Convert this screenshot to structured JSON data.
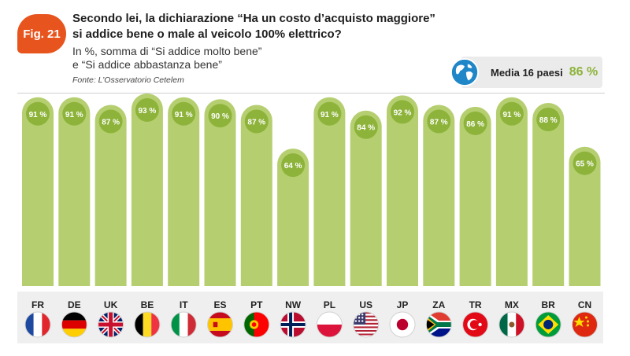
{
  "header": {
    "fig_label": "Fig. 21",
    "title": "Secondo lei, la dichiarazione “Ha un costo d’acquisto maggiore” si addice bene o male al veicolo 100% elettrico?",
    "subtitle_line1": "In %, somma di “Si addice molto bene”",
    "subtitle_line2": "e “Si addice abbastanza bene”",
    "source": "Fonte: L’Osservatorio Cetelem"
  },
  "average": {
    "label": "Media 16 paesi",
    "value": "86 %",
    "icon": "globe-icon"
  },
  "colors": {
    "bar": "#b5cf70",
    "bubble": "#8db33a",
    "accent": "#e8541e",
    "strip": "#efefef"
  },
  "chart_data": {
    "type": "bar",
    "categories": [
      "FR",
      "DE",
      "UK",
      "BE",
      "IT",
      "ES",
      "PT",
      "NW",
      "PL",
      "US",
      "JP",
      "ZA",
      "TR",
      "MX",
      "BR",
      "CN"
    ],
    "values": [
      91,
      91,
      87,
      93,
      91,
      90,
      87,
      64,
      91,
      84,
      92,
      87,
      86,
      91,
      88,
      65
    ],
    "data_labels": [
      "91 %",
      "91 %",
      "87 %",
      "93 %",
      "91 %",
      "90 %",
      "87 %",
      "64 %",
      "91 %",
      "84 %",
      "92 %",
      "87 %",
      "86 %",
      "91 %",
      "88 %",
      "65 %"
    ],
    "flag_icons": [
      "flag-fr-icon",
      "flag-de-icon",
      "flag-uk-icon",
      "flag-be-icon",
      "flag-it-icon",
      "flag-es-icon",
      "flag-pt-icon",
      "flag-no-icon",
      "flag-pl-icon",
      "flag-us-icon",
      "flag-jp-icon",
      "flag-za-icon",
      "flag-tr-icon",
      "flag-mx-icon",
      "flag-br-icon",
      "flag-cn-icon"
    ],
    "ylim": [
      0,
      100
    ],
    "grid": false,
    "unit": "%"
  }
}
